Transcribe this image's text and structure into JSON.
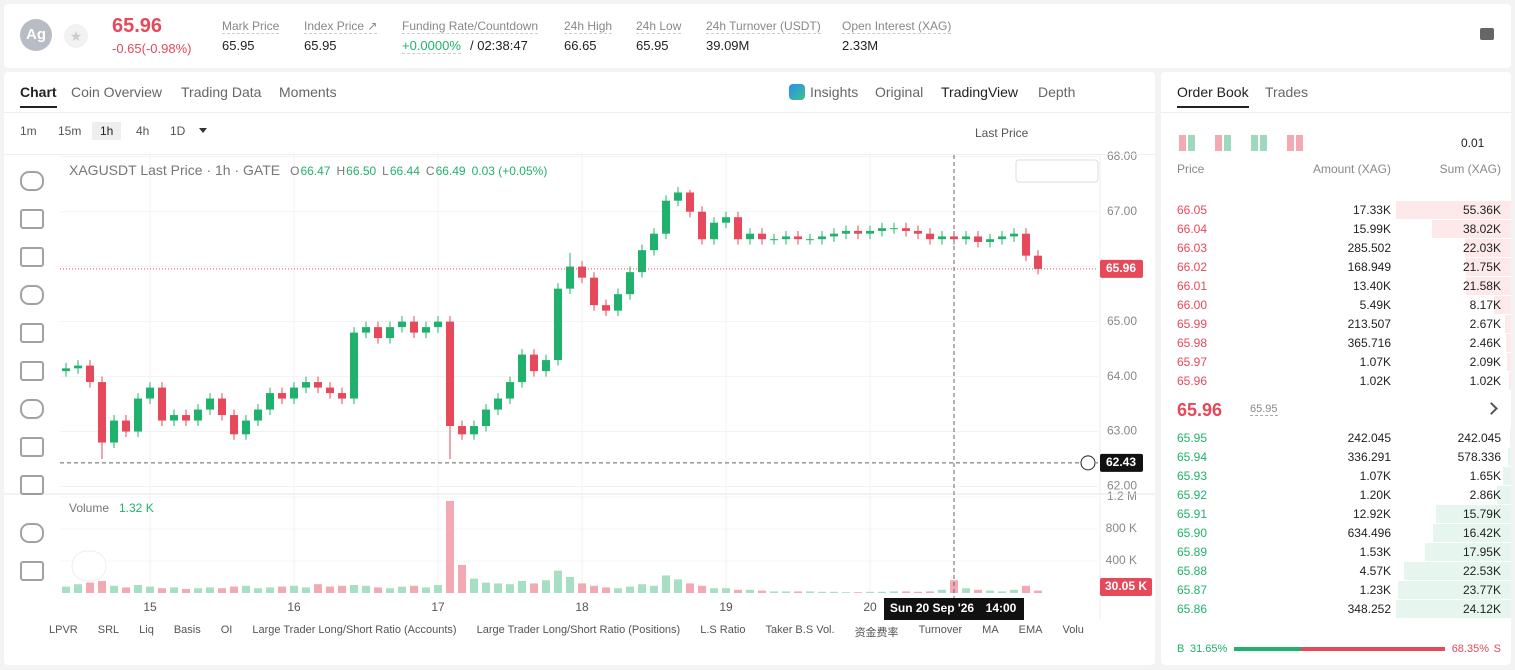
{
  "header": {
    "symbol_icon": "Ag",
    "price": "65.96",
    "change": "-0.65(-0.98%)",
    "stats": [
      {
        "label": "Mark Price",
        "value": "65.95"
      },
      {
        "label": "Index Price ↗",
        "value": "65.95"
      },
      {
        "label": "Funding Rate/Countdown",
        "value": "+0.0000%",
        "extra": "/ 02:38:47"
      },
      {
        "label": "24h High",
        "value": "66.65"
      },
      {
        "label": "24h Low",
        "value": "65.95"
      },
      {
        "label": "24h Turnover (USDT)",
        "value": "39.09M"
      },
      {
        "label": "Open Interest (XAG)",
        "value": "2.33M"
      }
    ]
  },
  "chart_tabs": [
    "Chart",
    "Coin Overview",
    "Trading Data",
    "Moments"
  ],
  "view_tabs": [
    "Insights",
    "Original",
    "TradingView",
    "Depth"
  ],
  "intervals": [
    "1m",
    "15m",
    "1h",
    "4h",
    "1D"
  ],
  "price_type": "Last Price",
  "indicators": [
    "LPVR",
    "SRL",
    "Liq",
    "Basis",
    "OI",
    "Large Trader Long/Short Ratio (Accounts)",
    "Large Trader Long/Short Ratio (Positions)",
    "L.S Ratio",
    "Taker B.S Vol.",
    "资金费率",
    "Turnover",
    "MA",
    "EMA",
    "Volu"
  ],
  "chart_data": {
    "type": "candlestick",
    "legend_title": "XAGUSDT Last Price · 1h · GATE",
    "ohlc_legend": [
      {
        "k": "O",
        "v": "66.47"
      },
      {
        "k": "H",
        "v": "66.50"
      },
      {
        "k": "L",
        "v": "66.44"
      },
      {
        "k": "C",
        "v": "66.49"
      }
    ],
    "legend_change": "0.03 (+0.05%)",
    "categories": [
      null,
      null,
      null,
      null,
      null,
      null,
      null,
      "15",
      null,
      null,
      null,
      null,
      null,
      null,
      null,
      null,
      null,
      null,
      null,
      "16",
      null,
      null,
      null,
      null,
      null,
      null,
      null,
      null,
      null,
      null,
      null,
      "17",
      null,
      null,
      null,
      null,
      null,
      null,
      null,
      null,
      null,
      null,
      null,
      "18",
      null,
      null,
      null,
      null,
      null,
      null,
      null,
      null,
      null,
      null,
      null,
      "19",
      null,
      null,
      null,
      null,
      null,
      null,
      null,
      null,
      null,
      null,
      null,
      "20",
      null,
      null,
      null,
      null,
      null,
      null,
      null,
      null,
      null,
      null,
      null,
      null,
      null,
      null
    ],
    "open": [
      64.1,
      64.15,
      64.2,
      63.9,
      62.8,
      63.2,
      63.0,
      63.6,
      63.8,
      63.2,
      63.3,
      63.2,
      63.4,
      63.6,
      63.3,
      62.95,
      63.2,
      63.4,
      63.7,
      63.6,
      63.8,
      63.9,
      63.8,
      63.7,
      63.6,
      64.8,
      64.9,
      64.7,
      64.9,
      65.0,
      64.8,
      64.9,
      65.0,
      63.1,
      62.95,
      63.1,
      63.4,
      63.6,
      63.9,
      64.4,
      64.1,
      64.3,
      65.6,
      66.0,
      65.8,
      65.3,
      65.2,
      65.5,
      65.9,
      66.3,
      66.6,
      67.2,
      67.35,
      67.0,
      66.5,
      66.8,
      66.9,
      66.5,
      66.6,
      66.5,
      66.5,
      66.55,
      66.5,
      66.5,
      66.55,
      66.6,
      66.65,
      66.6,
      66.65,
      66.7,
      66.7,
      66.65,
      66.6,
      66.5,
      66.55,
      66.5,
      66.55,
      66.45,
      66.5,
      66.55,
      66.6,
      66.2
    ],
    "high": [
      64.25,
      64.3,
      64.3,
      64.0,
      63.3,
      63.3,
      63.7,
      63.9,
      63.9,
      63.4,
      63.4,
      63.5,
      63.7,
      63.7,
      63.4,
      63.3,
      63.5,
      63.8,
      63.8,
      63.9,
      64.0,
      64.0,
      63.9,
      63.8,
      64.9,
      65.0,
      65.0,
      65.0,
      65.1,
      65.1,
      65.0,
      65.1,
      65.1,
      63.2,
      63.2,
      63.5,
      63.7,
      64.0,
      64.5,
      64.5,
      64.4,
      65.7,
      66.25,
      66.1,
      65.9,
      65.4,
      65.6,
      66.0,
      66.4,
      66.7,
      67.3,
      67.45,
      67.4,
      67.1,
      66.9,
      67.0,
      67.0,
      66.7,
      66.7,
      66.6,
      66.65,
      66.65,
      66.6,
      66.65,
      66.7,
      66.75,
      66.75,
      66.75,
      66.8,
      66.8,
      66.8,
      66.75,
      66.7,
      66.65,
      66.65,
      66.65,
      66.65,
      66.6,
      66.65,
      66.7,
      66.7,
      66.3
    ],
    "low": [
      64.0,
      64.05,
      63.8,
      62.5,
      62.7,
      62.9,
      62.9,
      63.5,
      63.1,
      63.1,
      63.1,
      63.1,
      63.3,
      63.2,
      62.85,
      62.85,
      63.1,
      63.3,
      63.5,
      63.5,
      63.7,
      63.7,
      63.6,
      63.5,
      63.5,
      64.7,
      64.6,
      64.6,
      64.8,
      64.7,
      64.7,
      64.8,
      62.5,
      62.85,
      62.85,
      63.0,
      63.3,
      63.5,
      63.8,
      64.0,
      64.0,
      64.2,
      65.5,
      65.7,
      65.2,
      65.1,
      65.1,
      65.4,
      65.8,
      66.2,
      66.5,
      67.1,
      66.9,
      66.4,
      66.4,
      66.7,
      66.4,
      66.4,
      66.4,
      66.4,
      66.4,
      66.4,
      66.4,
      66.4,
      66.45,
      66.5,
      66.5,
      66.5,
      66.55,
      66.6,
      66.55,
      66.5,
      66.4,
      66.4,
      66.4,
      66.4,
      66.35,
      66.35,
      66.4,
      66.45,
      66.1,
      65.86
    ],
    "close": [
      64.15,
      64.2,
      63.9,
      62.8,
      63.2,
      63.0,
      63.6,
      63.8,
      63.2,
      63.3,
      63.2,
      63.4,
      63.6,
      63.3,
      62.95,
      63.2,
      63.4,
      63.7,
      63.6,
      63.8,
      63.9,
      63.8,
      63.7,
      63.6,
      64.8,
      64.9,
      64.7,
      64.9,
      65.0,
      64.8,
      64.9,
      65.0,
      63.1,
      62.95,
      63.1,
      63.4,
      63.6,
      63.9,
      64.4,
      64.1,
      64.3,
      65.6,
      66.0,
      65.8,
      65.3,
      65.2,
      65.5,
      65.9,
      66.3,
      66.6,
      67.2,
      67.35,
      67.0,
      66.5,
      66.8,
      66.9,
      66.5,
      66.6,
      66.5,
      66.5,
      66.55,
      66.5,
      66.5,
      66.55,
      66.6,
      66.65,
      66.6,
      66.65,
      66.7,
      66.7,
      66.65,
      66.6,
      66.5,
      66.55,
      66.5,
      66.55,
      66.45,
      66.5,
      66.55,
      66.6,
      66.2,
      65.96
    ],
    "volume": [
      80000,
      110000,
      130000,
      150000,
      90000,
      70000,
      100000,
      80000,
      60000,
      70000,
      50000,
      60000,
      70000,
      60000,
      80000,
      90000,
      60000,
      70000,
      80000,
      90000,
      70000,
      110000,
      80000,
      90000,
      100000,
      90000,
      70000,
      60000,
      80000,
      90000,
      70000,
      100000,
      1150000,
      350000,
      180000,
      130000,
      120000,
      110000,
      150000,
      120000,
      160000,
      280000,
      200000,
      120000,
      90000,
      70000,
      60000,
      80000,
      110000,
      90000,
      220000,
      170000,
      120000,
      90000,
      60000,
      60000,
      40000,
      40000,
      30000,
      20000,
      20000,
      20000,
      20000,
      15000,
      15000,
      10000,
      10000,
      15000,
      15000,
      20000,
      20000,
      15000,
      20000,
      40000,
      160000,
      60000,
      40000,
      30000,
      20000,
      40000,
      90000,
      30000
    ],
    "ylim": [
      61.9,
      68.05
    ],
    "yticks": [
      {
        "value": 62,
        "label": "62.00"
      },
      {
        "value": 63,
        "label": "63.00"
      },
      {
        "value": 64,
        "label": "64.00"
      },
      {
        "value": 65,
        "label": "65.00"
      },
      {
        "value": 66,
        "label": "66.00"
      },
      {
        "value": 67,
        "label": "67.00"
      },
      {
        "value": 68,
        "label": "68.00"
      }
    ],
    "y2lim": [
      0,
      1200000
    ],
    "y2ticks": [
      {
        "value": 400000,
        "label": "400 K"
      },
      {
        "value": 800000,
        "label": "800 K"
      },
      {
        "value": 1200000,
        "label": "1.2 M"
      }
    ],
    "last_price": 65.96,
    "crosshair_price": 62.43,
    "crosshair_date": "Sun 20 Sep '26",
    "crosshair_time": "14:00",
    "volume_title": "Volume",
    "volume_value": "1.32 K",
    "volume_last": "30.05 K",
    "grid": true
  },
  "order_book": {
    "tabs": [
      "Order Book",
      "Trades"
    ],
    "precision": "0.01",
    "headers": [
      "Price",
      "Amount (XAG)",
      "Sum (XAG)"
    ],
    "asks": [
      [
        "66.05",
        "17.33K",
        "55.36K"
      ],
      [
        "66.04",
        "15.99K",
        "38.02K"
      ],
      [
        "66.03",
        "285.502",
        "22.03K"
      ],
      [
        "66.02",
        "168.949",
        "21.75K"
      ],
      [
        "66.01",
        "13.40K",
        "21.58K"
      ],
      [
        "66.00",
        "5.49K",
        "8.17K"
      ],
      [
        "65.99",
        "213.507",
        "2.67K"
      ],
      [
        "65.98",
        "365.716",
        "2.46K"
      ],
      [
        "65.97",
        "1.07K",
        "2.09K"
      ],
      [
        "65.96",
        "1.02K",
        "1.02K"
      ]
    ],
    "mid": {
      "price": "65.96",
      "mark": "65.95"
    },
    "bids": [
      [
        "65.95",
        "242.045",
        "242.045"
      ],
      [
        "65.94",
        "336.291",
        "578.336"
      ],
      [
        "65.93",
        "1.07K",
        "1.65K"
      ],
      [
        "65.92",
        "1.20K",
        "2.86K"
      ],
      [
        "65.91",
        "12.92K",
        "15.79K"
      ],
      [
        "65.90",
        "634.496",
        "16.42K"
      ],
      [
        "65.89",
        "1.53K",
        "17.95K"
      ],
      [
        "65.88",
        "4.57K",
        "22.53K"
      ],
      [
        "65.87",
        "1.23K",
        "23.77K"
      ],
      [
        "65.86",
        "348.252",
        "24.12K"
      ]
    ],
    "buy_label": "B",
    "buy": "31.65%",
    "sell": "68.35%",
    "sell_label": "S"
  }
}
